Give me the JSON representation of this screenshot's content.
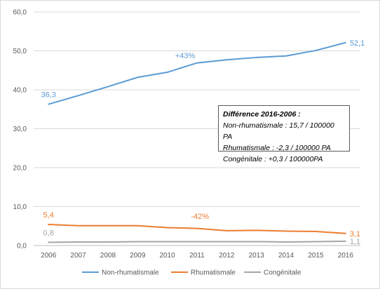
{
  "chart_data": {
    "type": "line",
    "x": [
      "2006",
      "2007",
      "2008",
      "2009",
      "2010",
      "2011",
      "2012",
      "2013",
      "2014",
      "2015",
      "2016"
    ],
    "ylim": [
      0,
      60
    ],
    "yticks": [
      "0,0",
      "10,0",
      "20,0",
      "30,0",
      "40,0",
      "50,0",
      "60,0"
    ],
    "grid": true,
    "legend": "bottom",
    "series": [
      {
        "name": "Non-rhumatismale",
        "color": "#5b9bd5",
        "values": [
          36.3,
          38.5,
          40.8,
          43.2,
          44.5,
          46.9,
          47.7,
          48.3,
          48.7,
          50.1,
          52.1
        ]
      },
      {
        "name": "Rhumatismale",
        "color": "#ed7d31",
        "values": [
          5.4,
          5.1,
          5.1,
          5.1,
          4.6,
          4.4,
          3.8,
          3.9,
          3.7,
          3.6,
          3.1
        ]
      },
      {
        "name": "Congénitale",
        "color": "#a5a5a5",
        "values": [
          0.8,
          0.9,
          0.9,
          1.0,
          1.0,
          1.0,
          1.0,
          1.0,
          0.9,
          1.0,
          1.1
        ]
      }
    ],
    "data_labels": [
      {
        "series": 0,
        "index": 0,
        "text": "36,3"
      },
      {
        "series": 0,
        "index": 10,
        "text": "52,1"
      },
      {
        "series": 1,
        "index": 0,
        "text": "5,4"
      },
      {
        "series": 1,
        "index": 10,
        "text": "3,1"
      },
      {
        "series": 2,
        "index": 0,
        "text": "0,8"
      },
      {
        "series": 2,
        "index": 10,
        "text": "1,1"
      }
    ],
    "annotations": [
      {
        "text": "+43%",
        "series": 0
      },
      {
        "text": "-42%",
        "series": 1
      }
    ]
  },
  "note": {
    "title": "Différence  2016-2006  :",
    "lines": [
      "Non-rhumatismale : 15,7 / 100000  PA",
      "Rhumatismale : -2,3 / 100000  PA",
      "Congénitale : +0,3 / 100000PA"
    ]
  }
}
